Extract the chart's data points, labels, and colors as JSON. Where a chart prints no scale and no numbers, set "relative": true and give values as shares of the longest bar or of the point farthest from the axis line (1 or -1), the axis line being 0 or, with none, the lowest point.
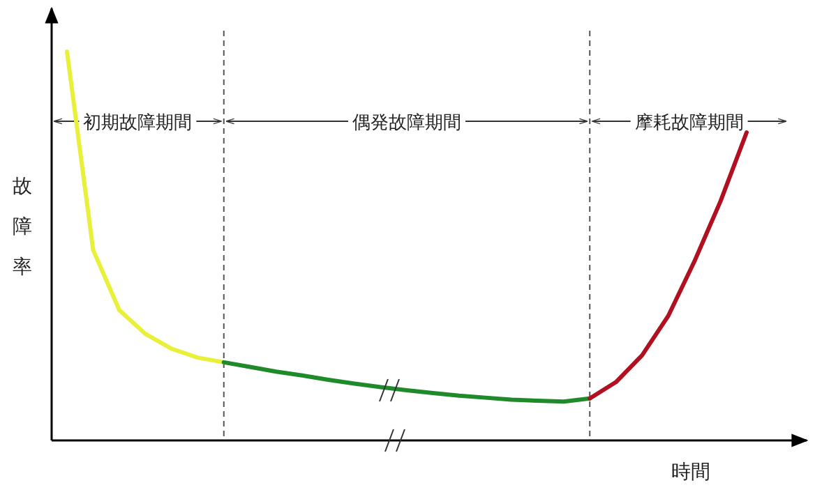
{
  "chart_data": {
    "type": "line",
    "relative": true,
    "xlabel": "時間",
    "ylabel": "故障率",
    "line_style": "solid",
    "marker": "none",
    "categories": [
      null,
      null,
      null,
      null,
      null,
      null,
      null,
      null,
      null,
      null,
      null,
      null,
      null,
      null,
      null,
      null,
      null,
      null,
      null,
      null,
      null,
      null,
      null,
      null,
      null,
      null,
      null
    ],
    "series": [
      {
        "color": "#e8f03a",
        "values": [
          1,
          0.49,
          0.335,
          0.274,
          0.236,
          0.213,
          0.201,
          null,
          null,
          null,
          null,
          null,
          null,
          null,
          null,
          null,
          null,
          null,
          null,
          null,
          null,
          null,
          null,
          null,
          null,
          null,
          null
        ]
      },
      {
        "color": "#1f8a2a",
        "values": [
          null,
          null,
          null,
          null,
          null,
          null,
          0.201,
          0.189,
          0.177,
          0.167,
          0.156,
          0.146,
          0.137,
          0.129,
          0.122,
          0.115,
          0.11,
          0.105,
          0.102,
          0.1,
          0.108,
          null,
          null,
          null,
          null,
          null,
          null
        ]
      },
      {
        "color": "#b01020",
        "values": [
          null,
          null,
          null,
          null,
          null,
          null,
          null,
          null,
          null,
          null,
          null,
          null,
          null,
          null,
          null,
          null,
          null,
          null,
          null,
          null,
          0.108,
          0.15,
          0.219,
          0.32,
          0.46,
          0.615,
          0.792
        ]
      }
    ],
    "annotations": [
      "初期故障期間",
      "偶発故障期間",
      "摩耗故障期間"
    ]
  }
}
